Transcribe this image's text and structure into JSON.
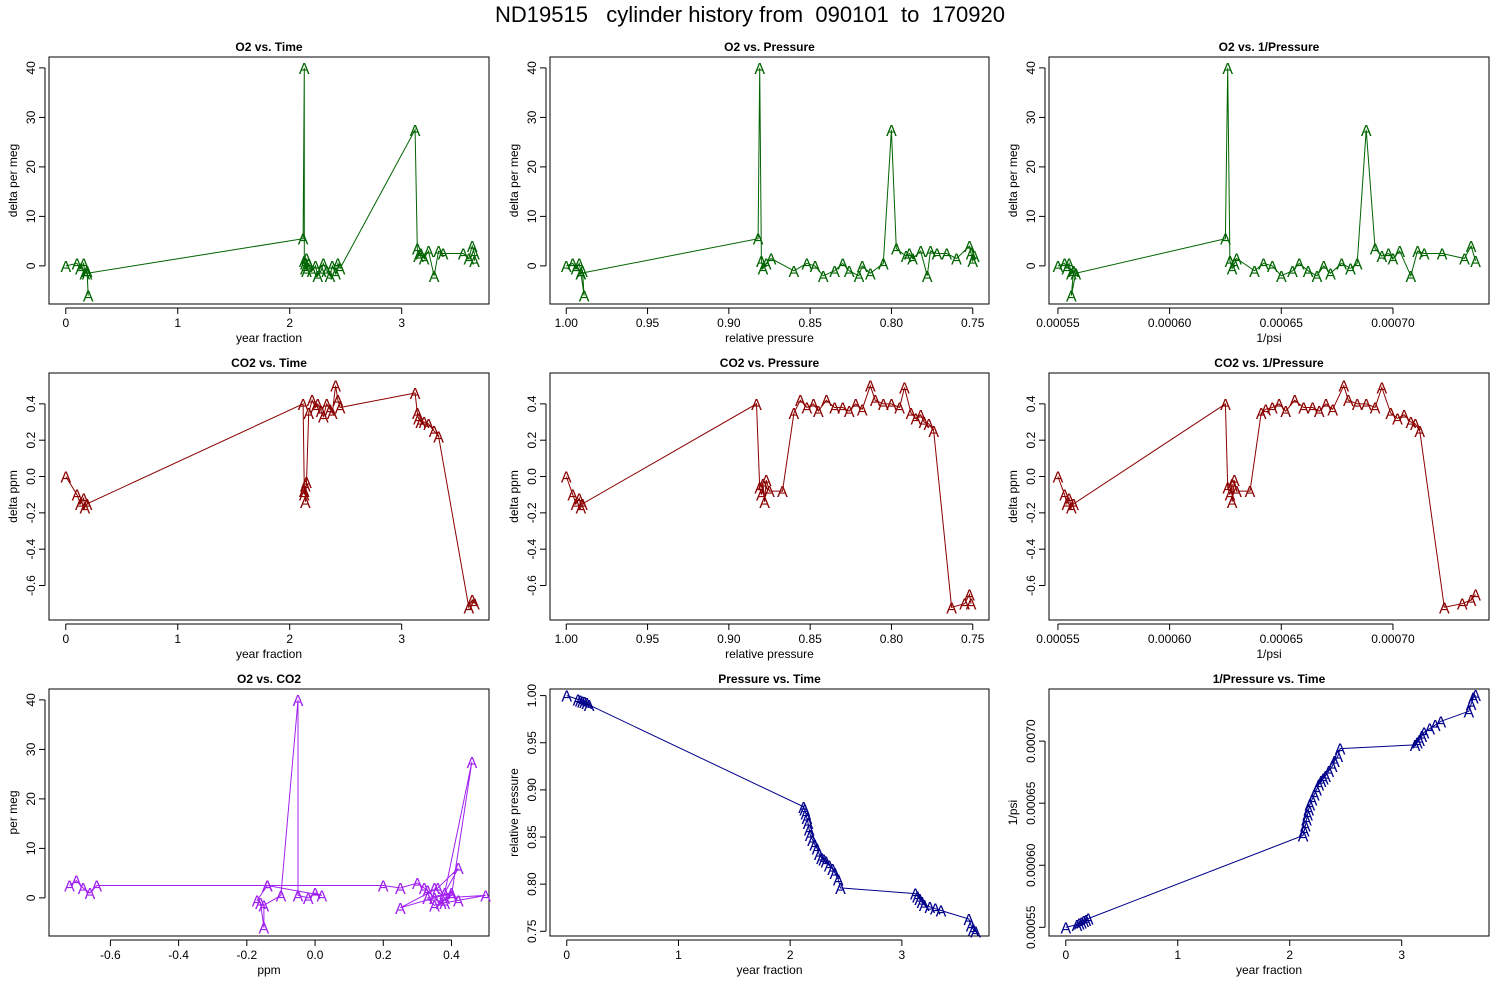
{
  "page_title": "ND19515   cylinder history from  090101  to  170920",
  "marker": "A",
  "chart_data": [
    {
      "id": "o2-vs-time",
      "type": "line",
      "title": "O2 vs. Time",
      "xlabel": "year fraction",
      "ylabel": "delta per meg",
      "color": "#006400",
      "xlim": [
        -0.15,
        3.78
      ],
      "ylim": [
        -7.7,
        42.2
      ],
      "xticks": [
        0,
        1,
        2,
        3
      ],
      "xtick_labels": [
        "0",
        "1",
        "2",
        "3"
      ],
      "yticks": [
        0,
        10,
        20,
        30,
        40
      ],
      "ytick_labels": [
        "0",
        "10",
        "20",
        "30",
        "40"
      ],
      "x": [
        0.0,
        0.1,
        0.13,
        0.16,
        0.17,
        0.19,
        0.2,
        0.19,
        2.12,
        2.13,
        2.13,
        2.14,
        2.14,
        2.15,
        2.15,
        2.17,
        2.2,
        2.23,
        2.25,
        2.28,
        2.3,
        2.33,
        2.36,
        2.38,
        2.41,
        2.43,
        2.45,
        3.12,
        3.14,
        3.15,
        3.17,
        3.2,
        3.24,
        3.29,
        3.33,
        3.37,
        3.55,
        3.6,
        3.63,
        3.65,
        3.65
      ],
      "y": [
        0,
        0.5,
        -0.5,
        0.5,
        -1.5,
        -1,
        -6,
        -1.5,
        5.5,
        40,
        1,
        -0.5,
        0.5,
        1.5,
        -1,
        0.5,
        -1,
        0,
        -2,
        -1,
        0.5,
        -1,
        -2,
        0,
        -1.5,
        0.5,
        -0.5,
        27.5,
        3.5,
        2,
        2.5,
        1.5,
        3,
        -2,
        3,
        2.5,
        2.5,
        1.5,
        4,
        2.5,
        1
      ]
    },
    {
      "id": "o2-vs-pressure",
      "type": "line",
      "title": "O2 vs. Pressure",
      "xlabel": "relative pressure",
      "ylabel": "delta per meg",
      "color": "#006400",
      "xlim": [
        1.01,
        0.74
      ],
      "ylim": [
        -7.7,
        42.2
      ],
      "xticks": [
        1.0,
        0.95,
        0.9,
        0.85,
        0.8,
        0.75
      ],
      "xtick_labels": [
        "1.00",
        "0.95",
        "0.90",
        "0.85",
        "0.80",
        "0.75"
      ],
      "yticks": [
        0,
        10,
        20,
        30,
        40
      ],
      "ytick_labels": [
        "0",
        "10",
        "20",
        "30",
        "40"
      ],
      "x": [
        1.0,
        0.996,
        0.994,
        0.992,
        0.991,
        0.99,
        0.989,
        0.991,
        0.882,
        0.881,
        0.88,
        0.879,
        0.877,
        0.874,
        0.86,
        0.852,
        0.847,
        0.842,
        0.835,
        0.83,
        0.826,
        0.82,
        0.818,
        0.813,
        0.805,
        0.8,
        0.797,
        0.791,
        0.789,
        0.787,
        0.782,
        0.778,
        0.776,
        0.772,
        0.766,
        0.76,
        0.752,
        0.751,
        0.75,
        0.749
      ],
      "y": [
        0,
        0.5,
        -0.5,
        0.5,
        -1.5,
        -1,
        -6,
        -1.5,
        5.5,
        40,
        1,
        -0.5,
        0.5,
        1.5,
        -1,
        0.5,
        0,
        -2,
        -1,
        0.5,
        -1,
        -2,
        0,
        -1.5,
        0.5,
        27.5,
        3.5,
        2,
        2.5,
        1.5,
        3,
        -2,
        3,
        2.5,
        2.5,
        1.5,
        4,
        2.5,
        1,
        2
      ]
    },
    {
      "id": "o2-vs-inverse-pressure",
      "type": "line",
      "title": "O2 vs. 1/Pressure",
      "xlabel": "1/psi",
      "ylabel": "delta per meg",
      "color": "#006400",
      "xlim": [
        0.000546,
        0.000743
      ],
      "ylim": [
        -7.7,
        42.2
      ],
      "xticks": [
        0.00055,
        0.0006,
        0.00065,
        0.0007
      ],
      "xtick_labels": [
        "0.00055",
        "0.00060",
        "0.00065",
        "0.00070"
      ],
      "yticks": [
        0,
        10,
        20,
        30,
        40
      ],
      "ytick_labels": [
        "0",
        "10",
        "20",
        "30",
        "40"
      ],
      "x": [
        0.00055,
        0.000553,
        0.000554,
        0.000555,
        0.000556,
        0.000557,
        0.000556,
        0.000558,
        0.000625,
        0.000626,
        0.000627,
        0.000628,
        0.000629,
        0.00063,
        0.000638,
        0.000642,
        0.000646,
        0.00065,
        0.000655,
        0.000658,
        0.000662,
        0.000666,
        0.000669,
        0.000672,
        0.000677,
        0.000681,
        0.000684,
        0.000688,
        0.000692,
        0.000695,
        0.000698,
        0.0007,
        0.000703,
        0.000708,
        0.000711,
        0.000714,
        0.000722,
        0.000732,
        0.000735,
        0.000737
      ],
      "y": [
        0,
        0.5,
        -0.5,
        0.5,
        -1.5,
        -1,
        -6,
        -1.5,
        5.5,
        40,
        1,
        -0.5,
        0.5,
        1.5,
        -1,
        0.5,
        0,
        -2,
        -1,
        0.5,
        -1,
        -2,
        0,
        -1.5,
        0.5,
        -0.5,
        0.5,
        27.5,
        3.5,
        2,
        2.5,
        1.5,
        3,
        -2,
        3,
        2.5,
        2.5,
        1.5,
        4,
        1
      ]
    },
    {
      "id": "co2-vs-time",
      "type": "line",
      "title": "CO2 vs. Time",
      "xlabel": "year fraction",
      "ylabel": "delta ppm",
      "color": "#8b0000",
      "xlim": [
        -0.15,
        3.78
      ],
      "ylim": [
        -0.79,
        0.57
      ],
      "xticks": [
        0,
        1,
        2,
        3
      ],
      "xtick_labels": [
        "0",
        "1",
        "2",
        "3"
      ],
      "yticks": [
        -0.6,
        -0.4,
        -0.2,
        0.0,
        0.2,
        0.4
      ],
      "ytick_labels": [
        "-0.6",
        "-0.4",
        "-0.2",
        "0.0",
        "0.2",
        "0.4"
      ],
      "x": [
        0.0,
        0.1,
        0.13,
        0.16,
        0.17,
        0.19,
        2.12,
        2.13,
        2.13,
        2.14,
        2.14,
        2.15,
        2.17,
        2.2,
        2.23,
        2.25,
        2.28,
        2.3,
        2.33,
        2.36,
        2.38,
        2.41,
        2.43,
        2.45,
        3.12,
        3.14,
        3.15,
        3.17,
        3.2,
        3.24,
        3.29,
        3.33,
        3.6,
        3.63,
        3.65
      ],
      "y": [
        0.0,
        -0.1,
        -0.15,
        -0.12,
        -0.17,
        -0.15,
        0.4,
        -0.08,
        -0.1,
        -0.05,
        -0.14,
        -0.03,
        0.35,
        0.42,
        0.38,
        0.4,
        0.36,
        0.33,
        0.4,
        0.37,
        0.35,
        0.5,
        0.42,
        0.38,
        0.46,
        0.35,
        0.32,
        0.3,
        0.3,
        0.29,
        0.25,
        0.22,
        -0.72,
        -0.68,
        -0.7
      ]
    },
    {
      "id": "co2-vs-pressure",
      "type": "line",
      "title": "CO2 vs. Pressure",
      "xlabel": "relative pressure",
      "ylabel": "delta ppm",
      "color": "#8b0000",
      "xlim": [
        1.01,
        0.74
      ],
      "ylim": [
        -0.79,
        0.57
      ],
      "xticks": [
        1.0,
        0.95,
        0.9,
        0.85,
        0.8,
        0.75
      ],
      "xtick_labels": [
        "1.00",
        "0.95",
        "0.90",
        "0.85",
        "0.80",
        "0.75"
      ],
      "yticks": [
        -0.6,
        -0.4,
        -0.2,
        0.0,
        0.2,
        0.4
      ],
      "ytick_labels": [
        "-0.6",
        "-0.4",
        "-0.2",
        "0.0",
        "0.2",
        "0.4"
      ],
      "x": [
        1.0,
        0.996,
        0.994,
        0.992,
        0.991,
        0.99,
        0.883,
        0.881,
        0.88,
        0.879,
        0.878,
        0.877,
        0.875,
        0.867,
        0.86,
        0.856,
        0.852,
        0.848,
        0.845,
        0.84,
        0.835,
        0.83,
        0.826,
        0.822,
        0.818,
        0.813,
        0.81,
        0.805,
        0.8,
        0.795,
        0.792,
        0.788,
        0.785,
        0.782,
        0.78,
        0.777,
        0.774,
        0.763,
        0.755,
        0.752,
        0.751
      ],
      "y": [
        0.0,
        -0.1,
        -0.15,
        -0.12,
        -0.17,
        -0.15,
        0.4,
        -0.06,
        -0.1,
        -0.04,
        -0.14,
        -0.02,
        -0.08,
        -0.08,
        0.35,
        0.42,
        0.38,
        0.4,
        0.36,
        0.42,
        0.38,
        0.38,
        0.36,
        0.4,
        0.37,
        0.5,
        0.42,
        0.4,
        0.4,
        0.38,
        0.49,
        0.35,
        0.32,
        0.34,
        0.3,
        0.29,
        0.25,
        -0.72,
        -0.7,
        -0.65,
        -0.7
      ]
    },
    {
      "id": "co2-vs-inverse-pressure",
      "type": "line",
      "title": "CO2 vs. 1/Pressure",
      "xlabel": "1/psi",
      "ylabel": "delta ppm",
      "color": "#8b0000",
      "xlim": [
        0.000546,
        0.000743
      ],
      "ylim": [
        -0.79,
        0.57
      ],
      "xticks": [
        0.00055,
        0.0006,
        0.00065,
        0.0007
      ],
      "xtick_labels": [
        "0.00055",
        "0.00060",
        "0.00065",
        "0.00070"
      ],
      "yticks": [
        -0.6,
        -0.4,
        -0.2,
        0.0,
        0.2,
        0.4
      ],
      "ytick_labels": [
        "-0.6",
        "-0.4",
        "-0.2",
        "0.0",
        "0.2",
        "0.4"
      ],
      "x": [
        0.00055,
        0.000553,
        0.000554,
        0.000555,
        0.000556,
        0.000557,
        0.000625,
        0.000626,
        0.000627,
        0.000628,
        0.000628,
        0.000629,
        0.00063,
        0.000636,
        0.000641,
        0.000643,
        0.000646,
        0.000649,
        0.000652,
        0.000656,
        0.00066,
        0.000664,
        0.000667,
        0.00067,
        0.000673,
        0.000678,
        0.00068,
        0.000684,
        0.000688,
        0.000692,
        0.000695,
        0.000699,
        0.000702,
        0.000705,
        0.000708,
        0.00071,
        0.000712,
        0.000723,
        0.000731,
        0.000735,
        0.000737
      ],
      "y": [
        0.0,
        -0.1,
        -0.15,
        -0.12,
        -0.17,
        -0.15,
        0.4,
        -0.06,
        -0.1,
        -0.04,
        -0.14,
        -0.02,
        -0.08,
        -0.08,
        0.35,
        0.37,
        0.38,
        0.4,
        0.36,
        0.42,
        0.38,
        0.38,
        0.36,
        0.4,
        0.37,
        0.5,
        0.42,
        0.4,
        0.4,
        0.38,
        0.49,
        0.35,
        0.32,
        0.34,
        0.3,
        0.29,
        0.25,
        -0.72,
        -0.7,
        -0.68,
        -0.65
      ]
    },
    {
      "id": "o2-vs-co2",
      "type": "line",
      "title": "O2 vs. CO2",
      "xlabel": "ppm",
      "ylabel": "per meg",
      "color": "#a020f0",
      "xlim": [
        -0.78,
        0.51
      ],
      "ylim": [
        -7.7,
        42.2
      ],
      "xticks": [
        -0.6,
        -0.4,
        -0.2,
        0.0,
        0.2,
        0.4
      ],
      "xtick_labels": [
        "-0.6",
        "-0.4",
        "-0.2",
        "0.0",
        "0.2",
        "0.4"
      ],
      "yticks": [
        0,
        10,
        20,
        30,
        40
      ],
      "ytick_labels": [
        "0",
        "10",
        "20",
        "30",
        "40"
      ],
      "x": [
        -0.72,
        -0.7,
        -0.68,
        -0.66,
        -0.64,
        -0.14,
        -0.17,
        -0.16,
        -0.15,
        -0.15,
        -0.1,
        -0.05,
        -0.05,
        -0.02,
        0.0,
        0.02,
        -0.14,
        0.2,
        0.25,
        0.3,
        0.32,
        0.33,
        0.35,
        0.37,
        0.4,
        0.46,
        0.38,
        0.42,
        0.36,
        0.25,
        0.4,
        0.33,
        0.35,
        0.38,
        0.42,
        0.5,
        0.38,
        0.35
      ],
      "y": [
        2.5,
        3.5,
        2,
        1,
        2.5,
        2.5,
        -0.5,
        -1,
        -6,
        -1.5,
        0.5,
        40,
        0.5,
        0,
        1,
        0.5,
        2.5,
        2.5,
        2,
        3,
        2,
        1.5,
        0,
        -1,
        0.5,
        27.5,
        1,
        6,
        2,
        -2,
        1,
        0,
        -1.5,
        -1,
        -0.5,
        0.5,
        0,
        2
      ]
    },
    {
      "id": "pressure-vs-time",
      "type": "line",
      "title": "Pressure vs. Time",
      "xlabel": "year fraction",
      "ylabel": "relative pressure",
      "color": "#00008b",
      "xlim": [
        -0.15,
        3.78
      ],
      "ylim": [
        0.745,
        1.007
      ],
      "xticks": [
        0,
        1,
        2,
        3
      ],
      "xtick_labels": [
        "0",
        "1",
        "2",
        "3"
      ],
      "yticks": [
        0.75,
        0.8,
        0.85,
        0.9,
        0.95,
        1.0
      ],
      "ytick_labels": [
        "0.75",
        "0.80",
        "0.85",
        "0.90",
        "0.95",
        "1.00"
      ],
      "x": [
        0.0,
        0.1,
        0.12,
        0.14,
        0.16,
        0.18,
        0.2,
        2.12,
        2.13,
        2.14,
        2.15,
        2.16,
        2.17,
        2.18,
        2.2,
        2.22,
        2.24,
        2.26,
        2.28,
        2.3,
        2.32,
        2.35,
        2.38,
        2.4,
        2.43,
        2.45,
        3.12,
        3.14,
        3.16,
        3.18,
        3.2,
        3.25,
        3.3,
        3.35,
        3.6,
        3.62,
        3.64,
        3.66
      ],
      "y": [
        1.0,
        0.996,
        0.995,
        0.994,
        0.993,
        0.992,
        0.99,
        0.882,
        0.879,
        0.875,
        0.87,
        0.865,
        0.858,
        0.852,
        0.847,
        0.842,
        0.838,
        0.832,
        0.828,
        0.826,
        0.824,
        0.82,
        0.816,
        0.812,
        0.805,
        0.796,
        0.79,
        0.787,
        0.784,
        0.781,
        0.778,
        0.776,
        0.774,
        0.772,
        0.763,
        0.756,
        0.752,
        0.75
      ]
    },
    {
      "id": "inverse-pressure-vs-time",
      "type": "line",
      "title": "1/Pressure vs. Time",
      "xlabel": "year fraction",
      "ylabel": "1/psi",
      "color": "#00008b",
      "xlim": [
        -0.15,
        3.78
      ],
      "ylim": [
        0.000543,
        0.000742
      ],
      "xticks": [
        0,
        1,
        2,
        3
      ],
      "xtick_labels": [
        "0",
        "1",
        "2",
        "3"
      ],
      "yticks": [
        0.00055,
        0.0006,
        0.00065,
        0.0007
      ],
      "ytick_labels": [
        "0.00055",
        "0.00060",
        "0.00065",
        "0.00070"
      ],
      "x": [
        0.0,
        0.1,
        0.12,
        0.14,
        0.16,
        0.18,
        0.2,
        2.12,
        2.13,
        2.14,
        2.15,
        2.16,
        2.17,
        2.18,
        2.2,
        2.22,
        2.24,
        2.26,
        2.28,
        2.3,
        2.32,
        2.35,
        2.38,
        2.4,
        2.43,
        2.45,
        3.12,
        3.14,
        3.16,
        3.18,
        3.2,
        3.25,
        3.3,
        3.35,
        3.6,
        3.62,
        3.64,
        3.66
      ],
      "y": [
        0.00055,
        0.000552,
        0.000553,
        0.000554,
        0.000555,
        0.000556,
        0.000557,
        0.000624,
        0.000628,
        0.000632,
        0.000637,
        0.000641,
        0.000645,
        0.000649,
        0.000653,
        0.000657,
        0.000661,
        0.000665,
        0.000668,
        0.00067,
        0.000672,
        0.000676,
        0.00068,
        0.000684,
        0.000688,
        0.000694,
        0.000697,
        0.000699,
        0.000701,
        0.000704,
        0.000707,
        0.00071,
        0.000713,
        0.000716,
        0.000724,
        0.00073,
        0.000735,
        0.000737
      ]
    }
  ]
}
